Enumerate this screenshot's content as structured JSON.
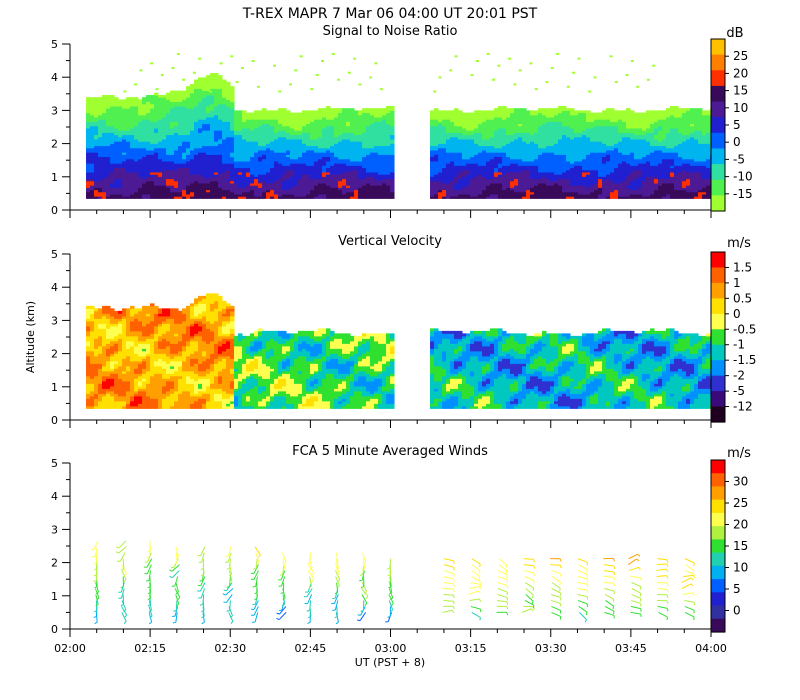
{
  "header": {
    "title": "T-REX   MAPR   7 Mar 06   04:00 UT   20:01   PST"
  },
  "shared": {
    "ylabel": "Altitude (km)",
    "xlabel": "UT  (PST + 8)",
    "y_ticks": [
      "0",
      "1",
      "2",
      "3",
      "4",
      "5"
    ],
    "x_ticks": [
      "02:00",
      "02:15",
      "02:30",
      "02:45",
      "03:00",
      "03:15",
      "03:30",
      "03:45",
      "04:00"
    ]
  },
  "chart_data": [
    {
      "type": "heatmap",
      "title": "Signal to Noise Ratio",
      "unit": "dB",
      "ylim": [
        0,
        5
      ],
      "xlim": [
        "02:00",
        "04:00"
      ],
      "data_gap": [
        "03:00",
        "03:07"
      ],
      "colorbar": {
        "labels": [
          "25",
          "20",
          "15",
          "10",
          "5",
          "0",
          "-5",
          "-10",
          "-15"
        ],
        "colors": [
          "#ffc000",
          "#ff8000",
          "#ff3000",
          "#3a0a5a",
          "#4d1a95",
          "#2020d0",
          "#0060ff",
          "#00b4f0",
          "#30e0a0",
          "#50f050",
          "#a0ff30"
        ]
      }
    },
    {
      "type": "heatmap",
      "title": "Vertical Velocity",
      "unit": "m/s",
      "ylim": [
        0,
        5
      ],
      "xlim": [
        "02:00",
        "04:00"
      ],
      "data_gap": [
        "03:00",
        "03:07"
      ],
      "colorbar": {
        "labels": [
          "1.5",
          "1",
          "0.5",
          "0",
          "-0.5",
          "-1",
          "-1.5",
          "-2",
          "-5",
          "-12"
        ],
        "colors": [
          "#ff0000",
          "#ff6000",
          "#ffa000",
          "#ffe000",
          "#ffff50",
          "#30e030",
          "#00c8c0",
          "#0090ff",
          "#3030d0",
          "#3a0a7a",
          "#200020"
        ]
      }
    },
    {
      "type": "scatter",
      "title": "FCA 5 Minute Averaged Winds",
      "unit": "m/s",
      "ylim": [
        0,
        5
      ],
      "xlim": [
        "02:00",
        "04:00"
      ],
      "colorbar": {
        "labels": [
          "30",
          "25",
          "20",
          "15",
          "10",
          "5",
          "0"
        ],
        "colors": [
          "#ff0000",
          "#ff6000",
          "#ffa000",
          "#ffe000",
          "#ffff50",
          "#b0f040",
          "#30e030",
          "#20d0b0",
          "#00b0f0",
          "#0060ff",
          "#2020d0",
          "#3030a0",
          "#3a0a5a"
        ]
      }
    }
  ]
}
